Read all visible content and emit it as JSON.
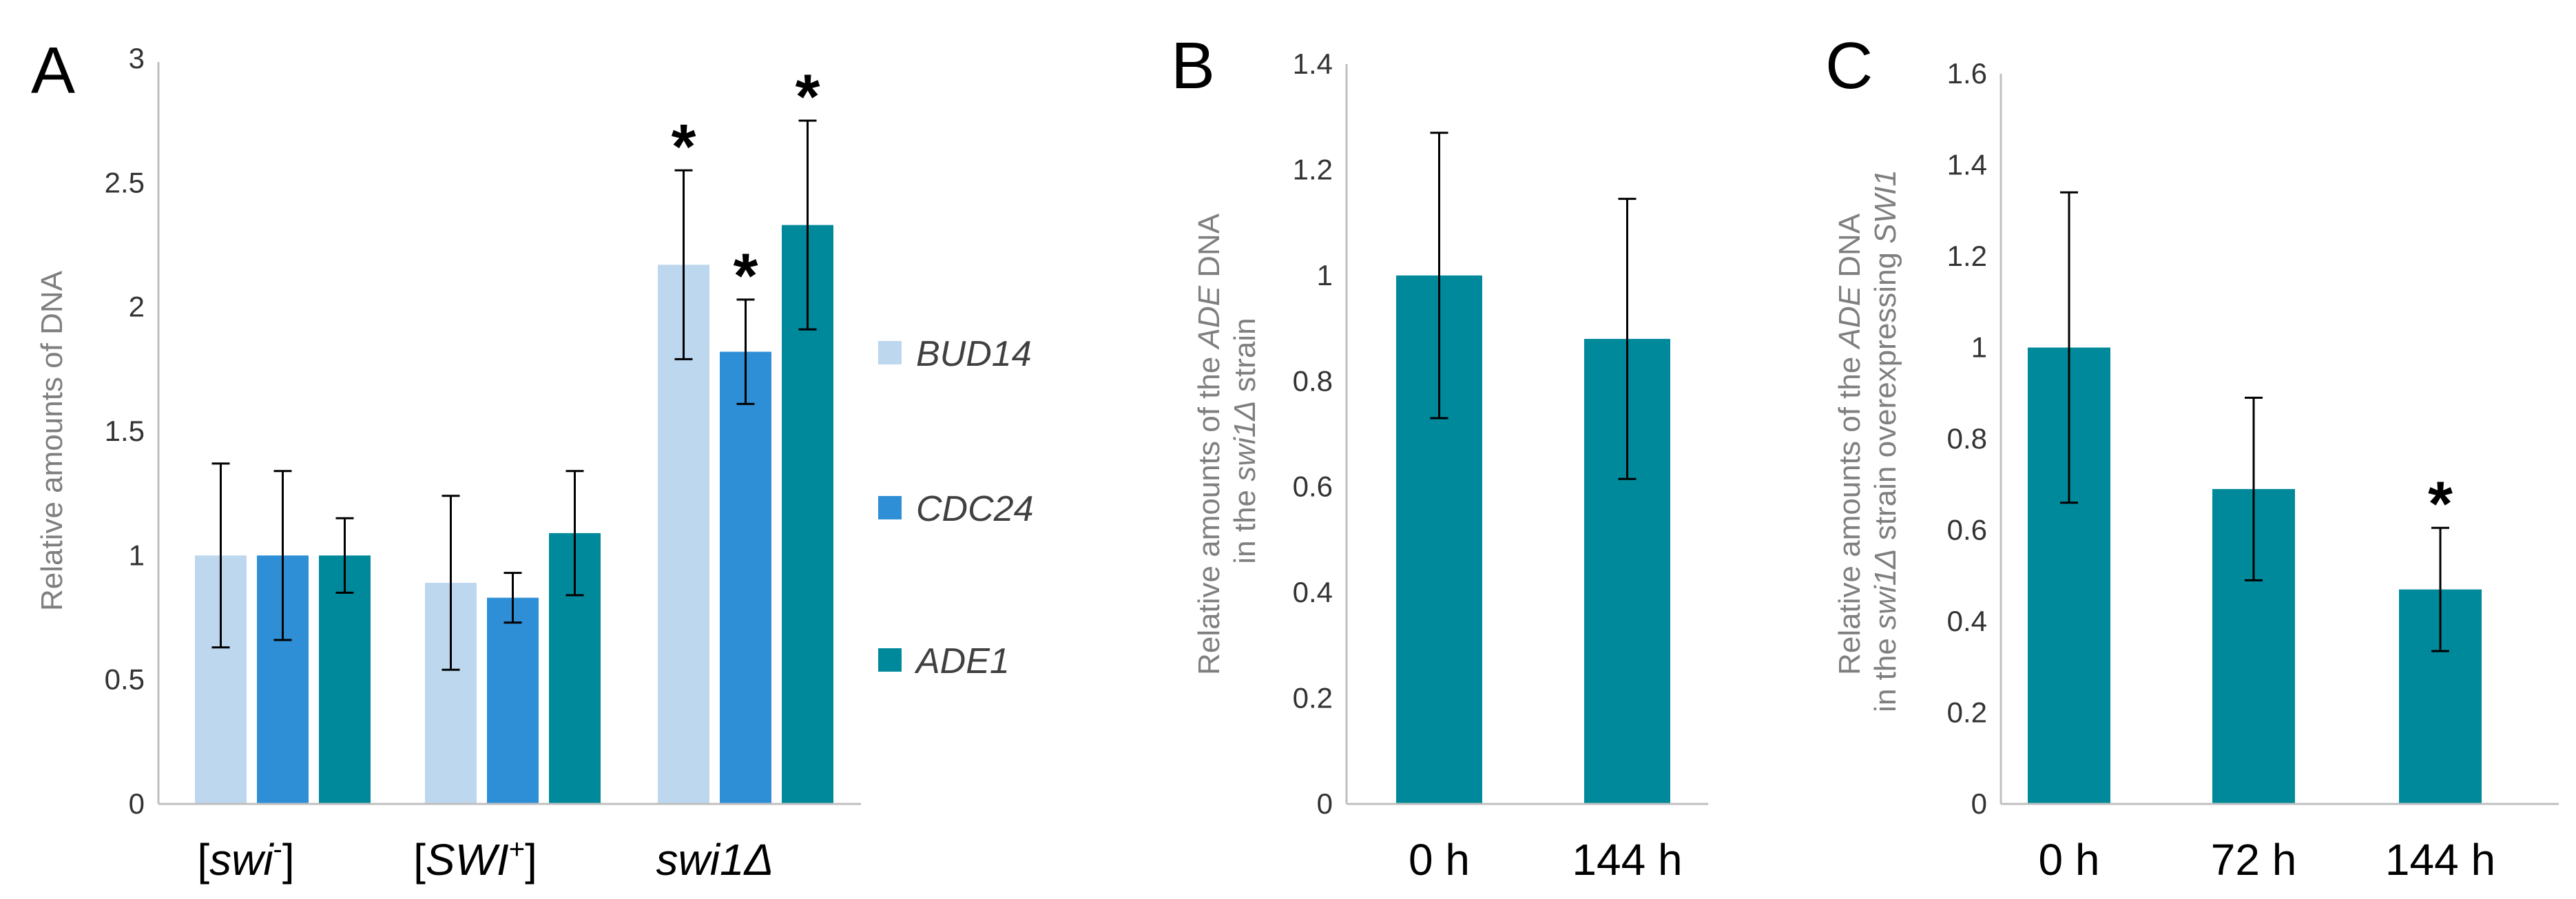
{
  "colors": {
    "BUD14": "#bdd7ee",
    "CDC24": "#2e8fd6",
    "ADE1": "#00899a",
    "single": "#00899a"
  },
  "chart_data": [
    {
      "panel": "A",
      "type": "bar",
      "ylabel": "Relative amounts of DNA",
      "ylim": [
        0,
        3
      ],
      "yticks": [
        "0",
        "0.5",
        "1",
        "1.5",
        "2",
        "2.5",
        "3"
      ],
      "categories": [
        {
          "pre": "[",
          "it": "swi",
          "sup": "-",
          "post": "]"
        },
        {
          "pre": "[",
          "it": "SWI",
          "sup": "+",
          "post": "]"
        },
        {
          "pre": "",
          "it": "swi1Δ",
          "sup": "",
          "post": ""
        }
      ],
      "series": [
        {
          "name": "BUD14",
          "values": [
            1.0,
            0.89,
            2.17
          ],
          "errors": [
            0.37,
            0.35,
            0.38
          ],
          "sig": [
            false,
            false,
            true
          ]
        },
        {
          "name": "CDC24",
          "values": [
            1.0,
            0.83,
            1.82
          ],
          "errors": [
            0.34,
            0.1,
            0.21
          ],
          "sig": [
            false,
            false,
            true
          ]
        },
        {
          "name": "ADE1",
          "values": [
            1.0,
            1.09,
            2.33
          ],
          "errors": [
            0.15,
            0.25,
            0.42
          ],
          "sig": [
            false,
            false,
            true
          ]
        }
      ],
      "legend": [
        "BUD14",
        "CDC24",
        "ADE1"
      ]
    },
    {
      "panel": "B",
      "type": "bar",
      "ylabel_line1": [
        {
          "t": "Relative amounts of the "
        },
        {
          "t": "ADE",
          "i": true
        },
        {
          "t": " DNA"
        }
      ],
      "ylabel_line2": [
        {
          "t": "in the "
        },
        {
          "t": "swi1Δ",
          "i": true
        },
        {
          "t": "  strain"
        }
      ],
      "ylim": [
        0,
        1.4
      ],
      "yticks": [
        "0",
        "0.2",
        "0.4",
        "0.6",
        "0.8",
        "1",
        "1.2",
        "1.4"
      ],
      "categories": [
        "0 h",
        "144 h"
      ],
      "values": [
        1.0,
        0.88
      ],
      "errors": [
        0.27,
        0.265
      ],
      "sig": [
        false,
        false
      ]
    },
    {
      "panel": "C",
      "type": "bar",
      "ylabel_line1": [
        {
          "t": "Relative amounts of the "
        },
        {
          "t": "ADE",
          "i": true
        },
        {
          "t": " DNA"
        }
      ],
      "ylabel_line2": [
        {
          "t": "in the "
        },
        {
          "t": "swi1Δ",
          "i": true
        },
        {
          "t": "  strain overexpressing "
        },
        {
          "t": "SWI1",
          "i": true
        }
      ],
      "ylim": [
        0,
        1.6
      ],
      "yticks": [
        "0",
        "0.2",
        "0.4",
        "0.6",
        "0.8",
        "1",
        "1.2",
        "1.4",
        "1.6"
      ],
      "categories": [
        "0 h",
        "72 h",
        "144 h"
      ],
      "values": [
        1.0,
        0.69,
        0.47
      ],
      "errors": [
        0.34,
        0.2,
        0.135
      ],
      "sig": [
        false,
        false,
        true
      ]
    }
  ],
  "significance_mark": "*"
}
